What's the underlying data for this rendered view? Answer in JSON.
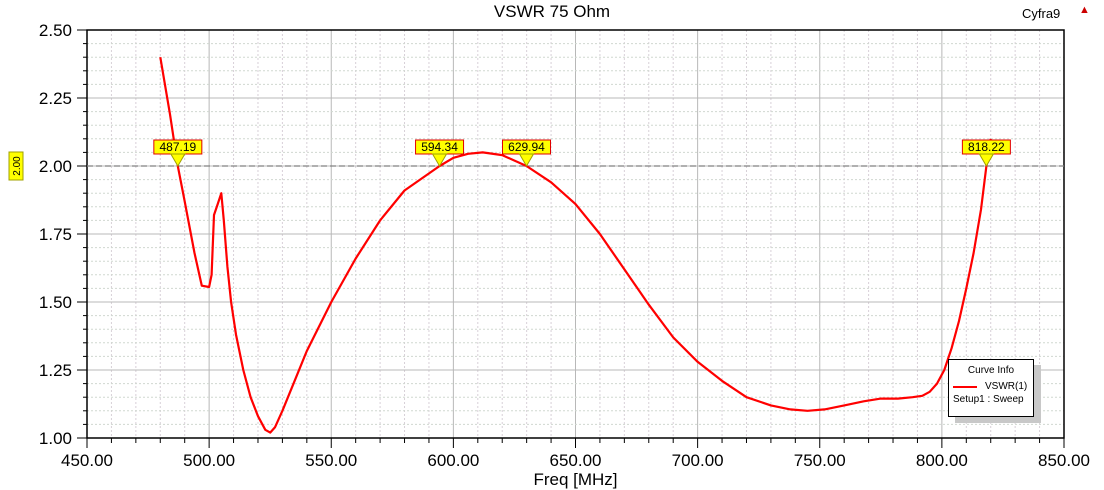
{
  "header": {
    "title": "VSWR 75 Ohm",
    "design_name": "Cyfra9"
  },
  "legend": {
    "title": "Curve Info",
    "series_name": "VSWR(1)",
    "setup": "Setup1 : Sweep"
  },
  "chart_data": {
    "type": "line",
    "title": "VSWR 75 Ohm",
    "xlabel": "Freq [MHz]",
    "ylabel": "",
    "xlim": [
      450,
      850
    ],
    "ylim": [
      1.0,
      2.5
    ],
    "x_ticks": [
      "450.00",
      "500.00",
      "550.00",
      "600.00",
      "650.00",
      "700.00",
      "750.00",
      "800.00",
      "850.00"
    ],
    "y_ticks": [
      "1.00",
      "1.25",
      "1.50",
      "1.75",
      "2.00",
      "2.25",
      "2.50"
    ],
    "grid": true,
    "legend_position": "bottom-right",
    "reference_line": {
      "y": 2.0,
      "label": "2.00"
    },
    "markers": [
      {
        "x": 487.19,
        "label": "487.19"
      },
      {
        "x": 594.34,
        "label": "594.34"
      },
      {
        "x": 629.94,
        "label": "629.94"
      },
      {
        "x": 818.22,
        "label": "818.22"
      }
    ],
    "series": [
      {
        "name": "VSWR(1)",
        "color": "#ff0000",
        "x": [
          480,
          484,
          487.19,
          490,
          494,
          497,
          500,
          501,
          502,
          503.5,
          505,
          506,
          507.5,
          509,
          511,
          514,
          517,
          520,
          523,
          525,
          527,
          530,
          535,
          540,
          550,
          560,
          570,
          580,
          594.34,
          600,
          606,
          612,
          620,
          629.94,
          640,
          650,
          660,
          670,
          680,
          690,
          700,
          710,
          720,
          730,
          738,
          745,
          752,
          760,
          768,
          775,
          782,
          788,
          792,
          795,
          798,
          801,
          804,
          807,
          810,
          813,
          816,
          818.22,
          820
        ],
        "y": [
          2.4,
          2.19,
          2.0,
          1.87,
          1.68,
          1.56,
          1.555,
          1.6,
          1.82,
          1.86,
          1.9,
          1.8,
          1.63,
          1.5,
          1.38,
          1.25,
          1.15,
          1.08,
          1.03,
          1.02,
          1.04,
          1.1,
          1.21,
          1.32,
          1.5,
          1.66,
          1.8,
          1.91,
          2.0,
          2.03,
          2.045,
          2.05,
          2.04,
          2.0,
          1.94,
          1.86,
          1.75,
          1.62,
          1.49,
          1.37,
          1.28,
          1.21,
          1.15,
          1.12,
          1.105,
          1.1,
          1.105,
          1.12,
          1.135,
          1.145,
          1.145,
          1.15,
          1.155,
          1.17,
          1.2,
          1.25,
          1.33,
          1.43,
          1.55,
          1.68,
          1.84,
          2.0,
          2.1
        ]
      }
    ]
  }
}
